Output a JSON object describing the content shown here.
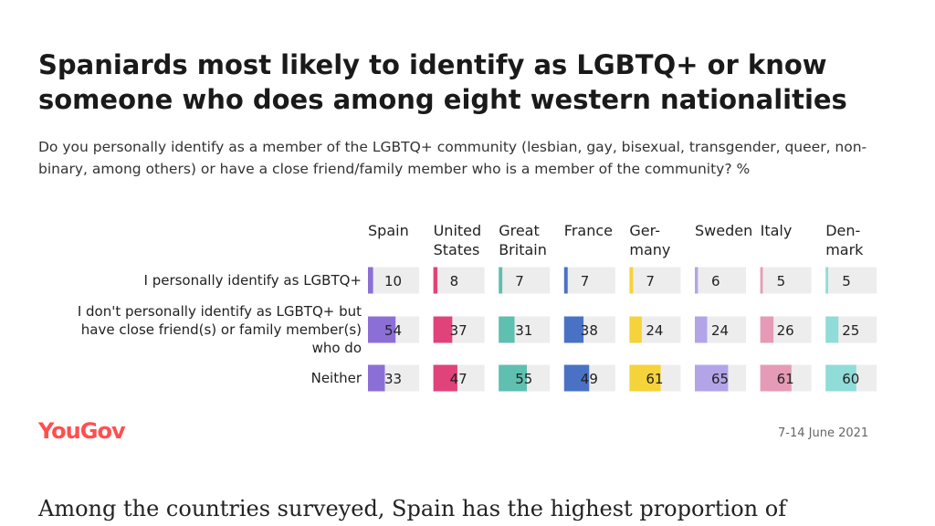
{
  "chart_data": {
    "type": "table",
    "title": "Spaniards most likely to identify as LGBTQ+ or know someone who does among eight western nationalities",
    "subtitle": "Do you personally identify as a member of the LGBTQ+ community (lesbian, gay, bisexual, transgender, queer, non-binary, among others) or have a close friend/family member who is a member of the community? %",
    "categories": [
      {
        "label_lines": [
          "Spain"
        ],
        "color": "#8c6fd6"
      },
      {
        "label_lines": [
          "United",
          "States"
        ],
        "color": "#e0437a"
      },
      {
        "label_lines": [
          "Great",
          "Britain"
        ],
        "color": "#5fbfb0"
      },
      {
        "label_lines": [
          "France"
        ],
        "color": "#4a72c4"
      },
      {
        "label_lines": [
          "Ger-",
          "many"
        ],
        "color": "#f5d33a"
      },
      {
        "label_lines": [
          "Sweden"
        ],
        "color": "#b3a4e8"
      },
      {
        "label_lines": [
          "Italy"
        ],
        "color": "#e59bb5"
      },
      {
        "label_lines": [
          "Den-",
          "mark"
        ],
        "color": "#8fdcd9"
      }
    ],
    "series": [
      {
        "name_lines": [
          "I personally identify as LGBTQ+"
        ],
        "values": [
          10,
          8,
          7,
          7,
          7,
          6,
          5,
          5
        ]
      },
      {
        "name_lines": [
          "I don't personally identify as LGBTQ+ but",
          "have close friend(s) or family member(s)",
          "who do"
        ],
        "values": [
          54,
          37,
          31,
          38,
          24,
          24,
          26,
          25
        ]
      },
      {
        "name_lines": [
          "Neither"
        ],
        "values": [
          33,
          47,
          55,
          49,
          61,
          65,
          61,
          60
        ]
      }
    ],
    "scale_max": 100
  },
  "footer": {
    "brand": "YouGov",
    "date": "7-14 June 2021"
  },
  "article": {
    "text": "Among the countries surveyed, Spain has the highest proportion of"
  }
}
